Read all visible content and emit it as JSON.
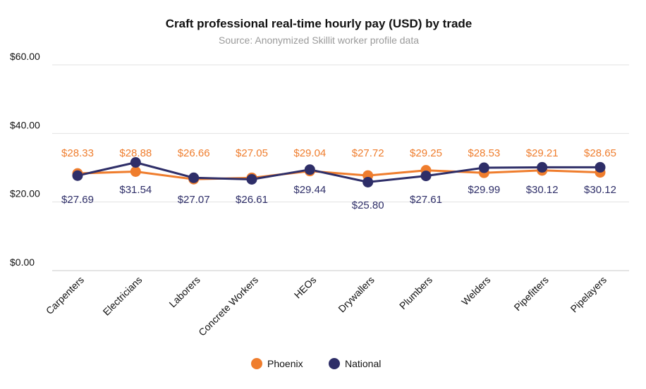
{
  "chart_data": {
    "type": "line",
    "title": "Craft professional real-time hourly pay (USD) by trade",
    "subtitle": "Source: Anonymized Skillit worker profile data",
    "categories": [
      "Carpenters",
      "Electricians",
      "Laborers",
      "Concrete Workers",
      "HEOs",
      "Drywallers",
      "Plumbers",
      "Welders",
      "Pipefitters",
      "Pipelayers"
    ],
    "y_ticks": [
      "$0.00",
      "$20.00",
      "$40.00",
      "$60.00"
    ],
    "ylim": [
      0,
      60
    ],
    "grid": true,
    "legend_position": "bottom",
    "series": [
      {
        "name": "Phoenix",
        "color": "#ef7d2d",
        "values": [
          28.33,
          28.88,
          26.66,
          27.05,
          29.04,
          27.72,
          29.25,
          28.53,
          29.21,
          28.65
        ],
        "labels": [
          "$28.33",
          "$28.88",
          "$26.66",
          "$27.05",
          "$29.04",
          "$27.72",
          "$29.25",
          "$28.53",
          "$29.21",
          "$28.65"
        ],
        "label_side": "above"
      },
      {
        "name": "National",
        "color": "#2e2e68",
        "values": [
          27.69,
          31.54,
          27.07,
          26.61,
          29.44,
          25.8,
          27.61,
          29.99,
          30.12,
          30.12
        ],
        "labels": [
          "$27.69",
          "$31.54",
          "$27.07",
          "$26.61",
          "$29.44",
          "$25.80",
          "$27.61",
          "$29.99",
          "$30.12",
          "$30.12"
        ],
        "label_side": "below"
      }
    ]
  }
}
